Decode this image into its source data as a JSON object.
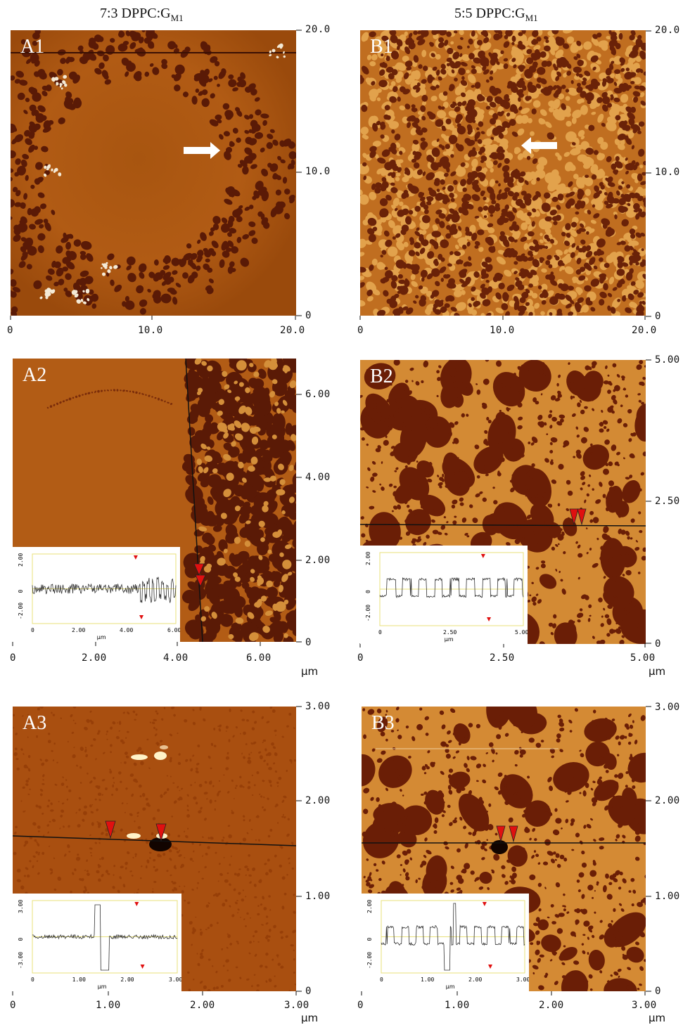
{
  "columns": [
    {
      "title_main": "7:3 DPPC:G",
      "title_sub": "M1"
    },
    {
      "title_main": "5:5 DPPC:G",
      "title_sub": "M1"
    }
  ],
  "panels": {
    "A1": {
      "label": "A1",
      "y_ticks": [
        "20.0",
        "10.0",
        "0"
      ],
      "x_ticks": [
        "0",
        "10.0",
        "20.0"
      ]
    },
    "B1": {
      "label": "B1",
      "y_ticks": [
        "20.0",
        "10.0",
        "0"
      ],
      "x_ticks": [
        "0",
        "10.0",
        "20.0"
      ]
    },
    "A2": {
      "label": "A2",
      "y_ticks": [
        "6.00",
        "4.00",
        "2.00",
        "0"
      ],
      "x_ticks": [
        "0",
        "2.00",
        "4.00",
        "6.00"
      ],
      "unit": "µm",
      "inset": {
        "y_ticks": [
          "2.00",
          "0",
          "-2.00"
        ],
        "x_ticks": [
          "0",
          "2.00",
          "4.00",
          "6.00"
        ],
        "unit": "µm"
      }
    },
    "B2": {
      "label": "B2",
      "y_ticks": [
        "5.00",
        "2.50",
        "0"
      ],
      "x_ticks": [
        "0",
        "2.50",
        "5.00"
      ],
      "unit": "µm",
      "inset": {
        "y_ticks": [
          "2.00",
          "0",
          "-2.00"
        ],
        "x_ticks": [
          "0",
          "2.50",
          "5.00"
        ],
        "unit": "µm"
      }
    },
    "A3": {
      "label": "A3",
      "y_ticks": [
        "3.00",
        "2.00",
        "1.00",
        "0"
      ],
      "x_ticks": [
        "0",
        "1.00",
        "2.00",
        "3.00"
      ],
      "unit": "µm",
      "inset": {
        "y_ticks": [
          "3.00",
          "0",
          "-3.00"
        ],
        "x_ticks": [
          "0",
          "1.00",
          "2.00",
          "3.00"
        ],
        "unit": "µm"
      }
    },
    "B3": {
      "label": "B3",
      "y_ticks": [
        "3.00",
        "2.00",
        "1.00",
        "0"
      ],
      "x_ticks": [
        "0",
        "1.00",
        "2.00",
        "3.00"
      ],
      "unit": "µm",
      "inset": {
        "y_ticks": [
          "2.00",
          "0",
          "-2.00"
        ],
        "x_ticks": [
          "0",
          "1.00",
          "2.00",
          "3.00"
        ],
        "unit": "µm"
      }
    }
  },
  "colors": {
    "afm_base": "#b0590f",
    "afm_dark": "#5a1a06",
    "afm_light": "#e6a24a",
    "marker": "#e01010"
  }
}
